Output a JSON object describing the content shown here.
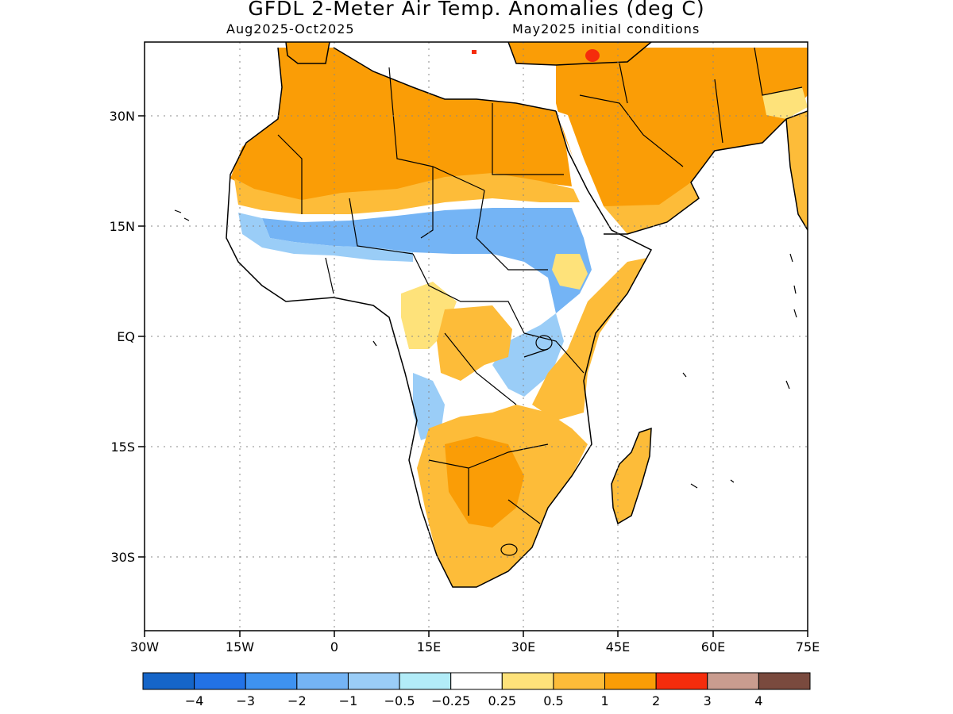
{
  "title": "GFDL 2-Meter Air Temp. Anomalies (deg C)",
  "subtitle_left": "Aug2025-Oct2025",
  "subtitle_right": "May2025 initial conditions",
  "map": {
    "lon_range": [
      -30,
      75
    ],
    "lat_range": [
      -40,
      40
    ],
    "lon_ticks": [
      "30W",
      "15W",
      "0",
      "15E",
      "30E",
      "45E",
      "60E",
      "75E"
    ],
    "lat_ticks": [
      "30N",
      "15N",
      "EQ",
      "15S",
      "30S"
    ],
    "grid": true
  },
  "colorbar": {
    "colors": [
      "#1565c8",
      "#2272e6",
      "#3e92f0",
      "#74b4f5",
      "#9acdf7",
      "#b2ecf8",
      "#ffffff",
      "#fee27a",
      "#fdbc39",
      "#fa9d06",
      "#f52c0c",
      "#c99c8f",
      "#7a4a3e"
    ],
    "labels": [
      "-4",
      "-3",
      "-2",
      "-1",
      "-0.5",
      "-0.25",
      "0.25",
      "0.5",
      "1",
      "2",
      "3",
      "4"
    ]
  },
  "regions": [
    {
      "name": "north-africa-warm",
      "color": "#fa9d06"
    },
    {
      "name": "arabia-warm",
      "color": "#fa9d06"
    },
    {
      "name": "sahara-south-warm",
      "color": "#fdbc39"
    },
    {
      "name": "sahel-cool",
      "color": "#74b4f5"
    },
    {
      "name": "southern-africa-warm",
      "color": "#fdbc39"
    },
    {
      "name": "madagascar-warm",
      "color": "#fdbc39"
    },
    {
      "name": "hotspot",
      "color": "#f52c0c"
    }
  ]
}
